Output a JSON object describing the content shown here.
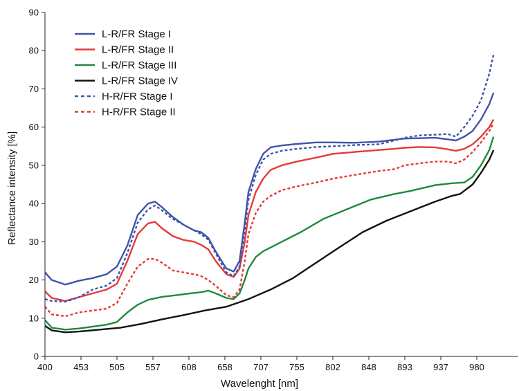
{
  "chart_data": {
    "type": "line",
    "xlabel": "Wavelenght [nm]",
    "ylabel": "Reflectance intensity [%]",
    "xlim": [
      400,
      1000
    ],
    "ylim": [
      0,
      90
    ],
    "x_ticks": [
      400,
      453,
      505,
      557,
      608,
      658,
      707,
      755,
      802,
      848,
      893,
      937,
      980
    ],
    "y_ticks": [
      0,
      10,
      20,
      30,
      40,
      50,
      60,
      70,
      80,
      90
    ],
    "grid": false,
    "legend_position": "top-left",
    "series": [
      {
        "name": "L-R/FR Stage I",
        "color": "#3f55a8",
        "dash": "solid",
        "x": [
          400,
          410,
          430,
          450,
          470,
          490,
          505,
          520,
          535,
          550,
          560,
          570,
          585,
          600,
          615,
          625,
          635,
          645,
          660,
          670,
          678,
          685,
          690,
          700,
          710,
          720,
          735,
          755,
          780,
          802,
          830,
          860,
          880,
          893,
          910,
          930,
          945,
          955,
          965,
          975,
          985,
          995,
          1000
        ],
        "y": [
          22,
          20,
          18.8,
          19.8,
          20.5,
          21.5,
          23.5,
          29,
          37,
          40,
          40.5,
          39,
          36.5,
          34.5,
          33,
          32.5,
          31,
          27.5,
          23,
          22.2,
          25,
          35,
          43,
          49,
          53,
          54.7,
          55.2,
          55.6,
          56,
          56,
          55.9,
          56.2,
          56.7,
          57,
          57.1,
          57.2,
          56.8,
          56.5,
          57.5,
          59,
          62,
          66,
          69
        ]
      },
      {
        "name": "L-R/FR Stage II",
        "color": "#e53a3a",
        "dash": "solid",
        "x": [
          400,
          410,
          430,
          450,
          470,
          490,
          505,
          520,
          535,
          550,
          560,
          570,
          585,
          600,
          615,
          625,
          635,
          645,
          660,
          670,
          678,
          685,
          690,
          700,
          710,
          720,
          735,
          755,
          780,
          802,
          830,
          860,
          880,
          893,
          910,
          930,
          945,
          955,
          965,
          975,
          985,
          995,
          1000
        ],
        "y": [
          17,
          15.3,
          14.5,
          15.5,
          16.5,
          17.5,
          19,
          25,
          32,
          34.8,
          35.2,
          33.5,
          31.5,
          30.5,
          30,
          29.2,
          28,
          25,
          21.5,
          20.8,
          23,
          30,
          37,
          43,
          46.5,
          48.8,
          50,
          51,
          52,
          53,
          53.5,
          54,
          54.3,
          54.6,
          54.8,
          54.7,
          54.2,
          53.8,
          54.3,
          55.5,
          57.5,
          60,
          62
        ]
      },
      {
        "name": "L-R/FR Stage III",
        "color": "#1f8a3c",
        "dash": "solid",
        "x": [
          400,
          410,
          430,
          450,
          470,
          490,
          505,
          520,
          535,
          550,
          570,
          590,
          610,
          625,
          635,
          645,
          660,
          670,
          678,
          685,
          690,
          700,
          710,
          730,
          760,
          790,
          820,
          850,
          880,
          900,
          930,
          950,
          965,
          975,
          985,
          995,
          1000
        ],
        "y": [
          9.5,
          7.5,
          7,
          7.3,
          7.8,
          8.3,
          9,
          11.5,
          13.5,
          14.8,
          15.6,
          16,
          16.5,
          16.8,
          17.2,
          16.5,
          15.3,
          15,
          16.5,
          20,
          23,
          26,
          27.5,
          29.5,
          32.5,
          36,
          38.5,
          41,
          42.5,
          43.3,
          44.8,
          45.3,
          45.5,
          47,
          50,
          54,
          57.5
        ]
      },
      {
        "name": "L-R/FR Stage IV",
        "color": "#111111",
        "dash": "solid",
        "x": [
          400,
          410,
          430,
          450,
          480,
          510,
          540,
          570,
          600,
          630,
          660,
          690,
          720,
          750,
          780,
          810,
          840,
          870,
          900,
          930,
          950,
          960,
          975,
          985,
          995,
          1000
        ],
        "y": [
          8,
          6.8,
          6.3,
          6.5,
          7,
          7.5,
          8.5,
          9.7,
          10.8,
          12,
          13,
          15,
          17.5,
          20.5,
          24.5,
          28.5,
          32.5,
          35.5,
          38,
          40.5,
          42,
          42.5,
          45,
          48,
          51.5,
          54
        ]
      },
      {
        "name": "H-R/FR Stage I",
        "color": "#3f55a8",
        "dash": "dotted",
        "x": [
          400,
          410,
          430,
          450,
          470,
          490,
          505,
          520,
          535,
          550,
          560,
          570,
          585,
          600,
          615,
          625,
          635,
          645,
          660,
          670,
          678,
          685,
          690,
          700,
          710,
          720,
          735,
          755,
          780,
          802,
          830,
          860,
          880,
          893,
          910,
          930,
          945,
          955,
          965,
          975,
          985,
          995,
          1000
        ],
        "y": [
          15,
          14.5,
          14.3,
          15.5,
          17.5,
          18.5,
          20.5,
          27,
          35,
          38.5,
          39.5,
          38.2,
          36,
          34.5,
          33,
          32,
          30.5,
          27,
          22,
          21,
          23.5,
          33,
          41,
          47.5,
          51.5,
          53,
          53.8,
          54.3,
          54.8,
          55,
          55.3,
          55.5,
          56.5,
          57.2,
          57.8,
          58,
          58.2,
          57.5,
          60,
          63,
          67,
          74,
          79
        ]
      },
      {
        "name": "H-R/FR Stage II",
        "color": "#e53a3a",
        "dash": "dotted",
        "x": [
          400,
          410,
          430,
          450,
          470,
          490,
          505,
          520,
          535,
          550,
          560,
          570,
          585,
          600,
          615,
          625,
          635,
          645,
          660,
          670,
          678,
          685,
          690,
          700,
          710,
          720,
          735,
          755,
          780,
          802,
          830,
          860,
          880,
          893,
          910,
          930,
          945,
          955,
          965,
          975,
          985,
          995,
          1000
        ],
        "y": [
          13,
          11,
          10.5,
          11.5,
          12,
          12.5,
          14,
          19,
          23.5,
          25.5,
          25.5,
          24.5,
          22.5,
          22,
          21.5,
          21,
          20,
          18.5,
          16,
          15.5,
          17.5,
          25,
          32,
          37.5,
          40.5,
          42,
          43.5,
          44.5,
          45.5,
          46.5,
          47.5,
          48.5,
          49,
          50,
          50.5,
          51,
          51,
          50.5,
          51.5,
          53.5,
          56,
          59,
          61
        ]
      }
    ]
  }
}
